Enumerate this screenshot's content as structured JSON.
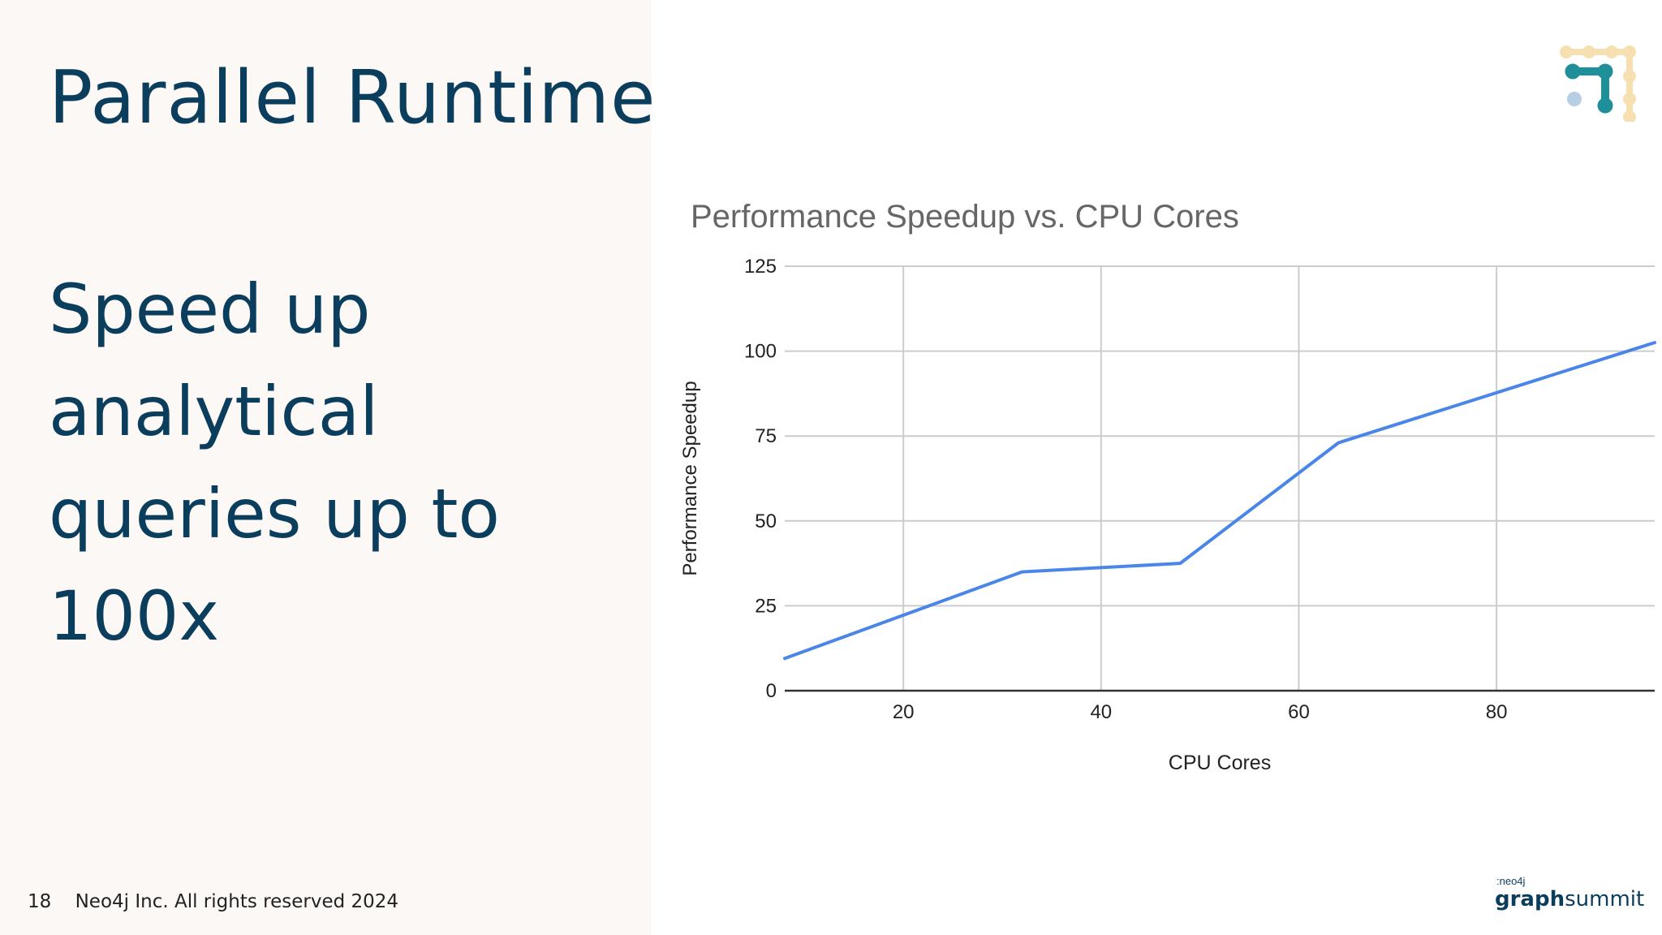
{
  "slide": {
    "title": "Parallel Runtime",
    "subtitle_lines": [
      "Speed up",
      "analytical",
      "queries up to",
      "100x"
    ],
    "page_number": "18",
    "footer_text": "Neo4j Inc. All rights reserved 2024"
  },
  "brand": {
    "small": ":neo4j",
    "main_bold": "graph",
    "main_light": "summit",
    "icon": "graph-network-logo-icon"
  },
  "colors": {
    "title": "#0b3d5c",
    "panel_bg": "#fbf8f5",
    "series_line": "#4a86e8",
    "grid": "#cccccc",
    "axis": "#333333"
  },
  "chart_data": {
    "type": "line",
    "title": "Performance Speedup vs. CPU Cores",
    "xlabel": "CPU Cores",
    "ylabel": "Performance Speedup",
    "xlim": [
      8,
      96
    ],
    "ylim": [
      0,
      125
    ],
    "xticks": [
      20,
      40,
      60,
      80
    ],
    "yticks": [
      0,
      25,
      50,
      75,
      100,
      125
    ],
    "grid": true,
    "legend": "none",
    "series": [
      {
        "x": [
          8,
          32,
          48,
          64,
          96
        ],
        "y": [
          9.5,
          35,
          37.5,
          73,
          102.5
        ]
      }
    ]
  }
}
